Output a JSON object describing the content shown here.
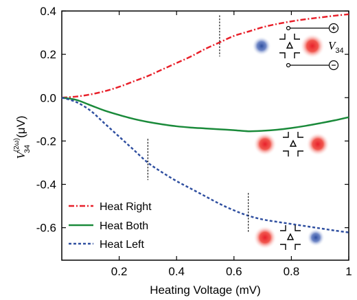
{
  "chart_data": {
    "type": "line",
    "xlabel": "Heating Voltage (mV)",
    "ylabel": {
      "symbol": "V",
      "superscript": "(2ω)",
      "subscript": "34",
      "unit": "(μV)"
    },
    "xlim": [
      0,
      1
    ],
    "ylim": [
      -0.75,
      0.4
    ],
    "x_ticks": [
      0.2,
      0.4,
      0.6,
      0.8,
      1.0
    ],
    "x_tick_labels": [
      "0.2",
      "0.4",
      "0.6",
      "0.8",
      "1"
    ],
    "y_ticks": [
      -0.6,
      -0.4,
      -0.2,
      0.0,
      0.2,
      0.4
    ],
    "y_tick_labels": [
      "-0.6",
      "-0.4",
      "-0.2",
      "0.0",
      "0.2",
      "0.4"
    ],
    "grid": false,
    "legend_position": "bottom-left",
    "series": [
      {
        "name": "Heat Right",
        "color": "#e8202a",
        "dash": "dash-dot",
        "x": [
          0.0,
          0.05,
          0.1,
          0.15,
          0.2,
          0.25,
          0.3,
          0.35,
          0.4,
          0.45,
          0.5,
          0.55,
          0.6,
          0.65,
          0.7,
          0.75,
          0.8,
          0.85,
          0.9,
          0.95,
          1.0
        ],
        "y": [
          0.0,
          0.005,
          0.015,
          0.03,
          0.05,
          0.075,
          0.1,
          0.13,
          0.16,
          0.19,
          0.225,
          0.255,
          0.285,
          0.305,
          0.325,
          0.34,
          0.352,
          0.362,
          0.37,
          0.378,
          0.385
        ]
      },
      {
        "name": "Heat Both",
        "color": "#1a8a3a",
        "dash": "solid",
        "x": [
          0.0,
          0.05,
          0.1,
          0.15,
          0.2,
          0.25,
          0.3,
          0.35,
          0.4,
          0.45,
          0.5,
          0.55,
          0.6,
          0.65,
          0.7,
          0.75,
          0.8,
          0.85,
          0.9,
          0.95,
          1.0
        ],
        "y": [
          0.0,
          -0.01,
          -0.035,
          -0.06,
          -0.08,
          -0.098,
          -0.112,
          -0.123,
          -0.132,
          -0.138,
          -0.142,
          -0.146,
          -0.15,
          -0.155,
          -0.153,
          -0.148,
          -0.14,
          -0.13,
          -0.118,
          -0.105,
          -0.09
        ]
      },
      {
        "name": "Heat Left",
        "color": "#2f4fa0",
        "dash": "dashed",
        "x": [
          0.0,
          0.05,
          0.1,
          0.15,
          0.2,
          0.25,
          0.3,
          0.35,
          0.4,
          0.45,
          0.5,
          0.55,
          0.6,
          0.65,
          0.7,
          0.75,
          0.8,
          0.85,
          0.9,
          0.95,
          1.0
        ],
        "y": [
          0.0,
          -0.02,
          -0.06,
          -0.12,
          -0.18,
          -0.24,
          -0.3,
          -0.345,
          -0.385,
          -0.42,
          -0.455,
          -0.49,
          -0.52,
          -0.545,
          -0.562,
          -0.573,
          -0.583,
          -0.593,
          -0.603,
          -0.613,
          -0.622
        ]
      }
    ],
    "markers": [
      {
        "x": 0.55,
        "y_range": [
          0.19,
          0.38
        ]
      },
      {
        "x": 0.3,
        "y_range": [
          -0.38,
          -0.19
        ]
      },
      {
        "x": 0.65,
        "y_range": [
          -0.62,
          -0.44
        ]
      }
    ],
    "inset": {
      "label_symbol": "V",
      "label_subscript": "34",
      "plus_sign": "+",
      "minus_sign": "−"
    },
    "blob_colors": {
      "hot": "#e8202a",
      "cold": "#2f4fa0"
    }
  }
}
